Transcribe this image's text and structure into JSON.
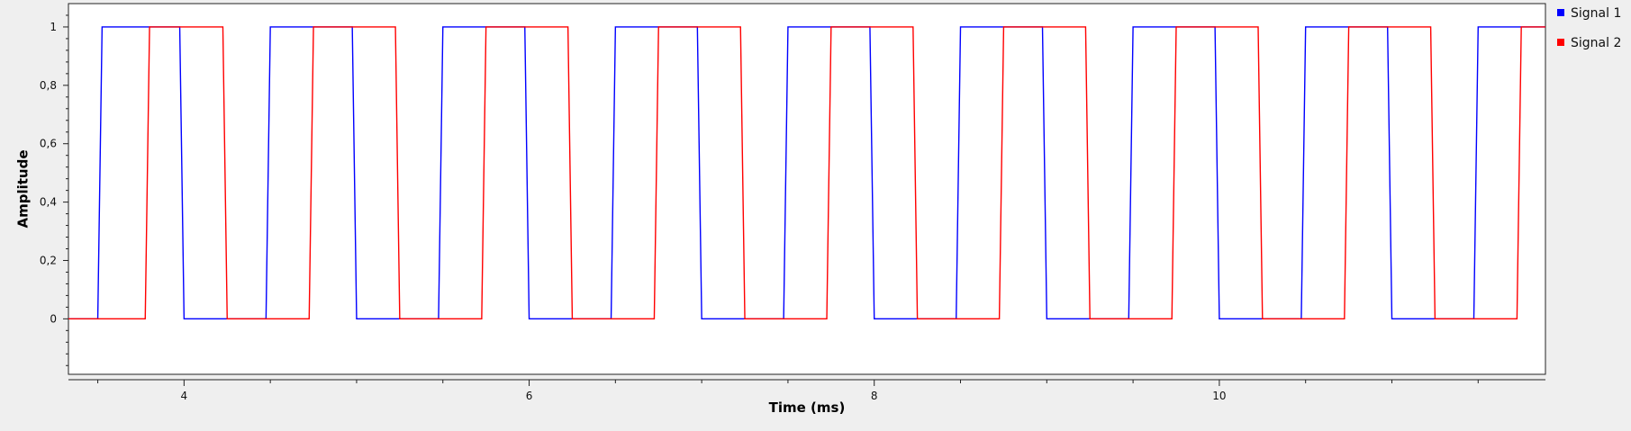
{
  "chart_data": {
    "type": "line",
    "title": "",
    "xlabel": "Time (ms)",
    "ylabel": "Amplitude",
    "xlim": [
      3.33,
      11.89
    ],
    "ylim": [
      -0.19,
      1.08
    ],
    "x_ticks": [
      4,
      6,
      8,
      10
    ],
    "x_tick_labels": [
      "4",
      "6",
      "8",
      "10"
    ],
    "x_minor_ticks": [
      3.5,
      4.5,
      5,
      5.5,
      6.5,
      7,
      7.5,
      8.5,
      9,
      9.5,
      10.5,
      11,
      11.5
    ],
    "y_ticks": [
      0,
      0.2,
      0.4,
      0.6,
      0.8,
      1
    ],
    "y_tick_labels": [
      "0",
      "0,2",
      "0,4",
      "0,6",
      "0,8",
      "1"
    ],
    "grid": false,
    "legend_position": "top-right-outside",
    "series": [
      {
        "name": "Signal 1",
        "color": "#0000ff",
        "x": [
          3.33,
          3.5,
          3.525,
          3.975,
          4.0,
          4.475,
          4.5,
          4.975,
          5.0,
          5.475,
          5.5,
          5.975,
          6.0,
          6.475,
          6.5,
          6.975,
          7.0,
          7.475,
          7.5,
          7.975,
          8.0,
          8.475,
          8.5,
          8.975,
          9.0,
          9.475,
          9.5,
          9.975,
          10.0,
          10.475,
          10.5,
          10.975,
          11.0,
          11.475,
          11.5,
          11.89
        ],
        "y": [
          0,
          0,
          1,
          1,
          0,
          0,
          1,
          1,
          0,
          0,
          1,
          1,
          0,
          0,
          1,
          1,
          0,
          0,
          1,
          1,
          0,
          0,
          1,
          1,
          0,
          0,
          1,
          1,
          0,
          0,
          1,
          1,
          0,
          0,
          1,
          1
        ]
      },
      {
        "name": "Signal 2",
        "color": "#ff0000",
        "x": [
          3.33,
          3.775,
          3.8,
          4.225,
          4.25,
          4.725,
          4.75,
          5.225,
          5.25,
          5.725,
          5.75,
          6.225,
          6.25,
          6.725,
          6.75,
          7.225,
          7.25,
          7.725,
          7.75,
          8.225,
          8.25,
          8.725,
          8.75,
          9.225,
          9.25,
          9.725,
          9.75,
          10.225,
          10.25,
          10.725,
          10.75,
          11.225,
          11.25,
          11.725,
          11.75,
          11.89
        ],
        "y": [
          0,
          0,
          1,
          1,
          0,
          0,
          1,
          1,
          0,
          0,
          1,
          1,
          0,
          0,
          1,
          1,
          0,
          0,
          1,
          1,
          0,
          0,
          1,
          1,
          0,
          0,
          1,
          1,
          0,
          0,
          1,
          1,
          0,
          0,
          1,
          1
        ]
      }
    ]
  }
}
